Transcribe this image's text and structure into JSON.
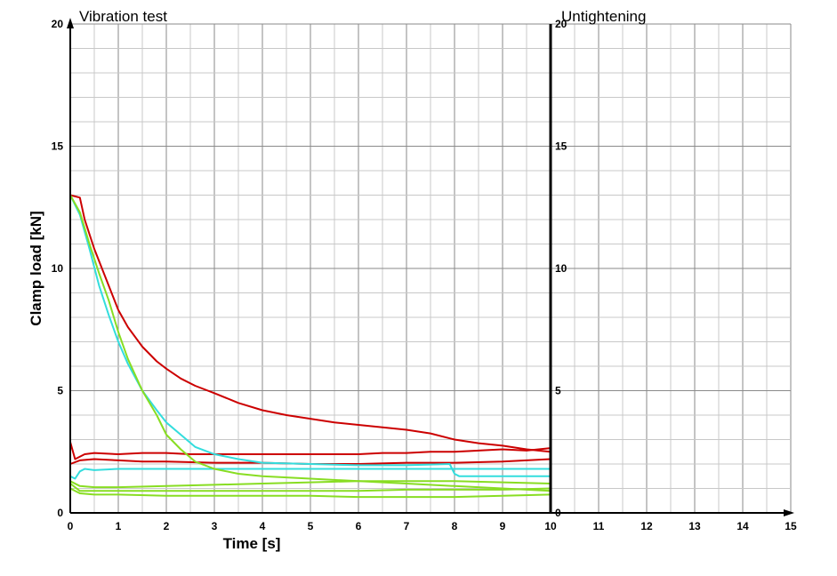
{
  "chart_data": {
    "type": "line",
    "panels": {
      "vibration": {
        "title": "Vibration test",
        "xlim": [
          0,
          10
        ]
      },
      "untightening": {
        "title": "Untightening",
        "xlim": [
          10,
          15
        ]
      }
    },
    "xlabel": "Time [s]",
    "ylabel": "Clamp load [kN]",
    "ylim": [
      0,
      20
    ],
    "x_ticks": [
      0,
      1,
      2,
      3,
      4,
      5,
      6,
      7,
      8,
      9,
      10,
      11,
      12,
      13,
      14,
      15
    ],
    "y_ticks": [
      0,
      5,
      10,
      15,
      20
    ],
    "grid": true,
    "colors": {
      "red": "#cc0000",
      "cyan": "#33dddd",
      "green": "#88dd22"
    },
    "series": [
      {
        "color": "red",
        "points": [
          [
            0,
            13
          ],
          [
            0.2,
            12.9
          ],
          [
            0.3,
            12
          ],
          [
            0.5,
            10.8
          ],
          [
            0.8,
            9.3
          ],
          [
            1,
            8.3
          ],
          [
            1.2,
            7.6
          ],
          [
            1.5,
            6.8
          ],
          [
            1.8,
            6.2
          ],
          [
            2,
            5.9
          ],
          [
            2.3,
            5.5
          ],
          [
            2.6,
            5.2
          ],
          [
            3,
            4.9
          ],
          [
            3.5,
            4.5
          ],
          [
            4,
            4.2
          ],
          [
            4.5,
            4.0
          ],
          [
            5,
            3.85
          ],
          [
            5.5,
            3.7
          ],
          [
            6,
            3.6
          ],
          [
            6.5,
            3.5
          ],
          [
            7,
            3.4
          ],
          [
            7.5,
            3.25
          ],
          [
            8,
            3.0
          ],
          [
            8.5,
            2.85
          ],
          [
            9,
            2.75
          ],
          [
            9.5,
            2.6
          ],
          [
            10,
            2.5
          ]
        ]
      },
      {
        "color": "red",
        "points": [
          [
            0,
            2.9
          ],
          [
            0.1,
            2.2
          ],
          [
            0.3,
            2.4
          ],
          [
            0.5,
            2.45
          ],
          [
            1,
            2.4
          ],
          [
            1.5,
            2.45
          ],
          [
            2,
            2.45
          ],
          [
            2.5,
            2.4
          ],
          [
            3,
            2.4
          ],
          [
            4,
            2.4
          ],
          [
            5,
            2.4
          ],
          [
            6,
            2.4
          ],
          [
            6.5,
            2.45
          ],
          [
            7,
            2.45
          ],
          [
            7.5,
            2.5
          ],
          [
            8,
            2.5
          ],
          [
            8.5,
            2.55
          ],
          [
            9,
            2.6
          ],
          [
            9.5,
            2.55
          ],
          [
            10,
            2.65
          ]
        ]
      },
      {
        "color": "red",
        "points": [
          [
            0,
            2.0
          ],
          [
            0.2,
            2.15
          ],
          [
            0.5,
            2.2
          ],
          [
            1,
            2.15
          ],
          [
            1.5,
            2.1
          ],
          [
            2,
            2.1
          ],
          [
            3,
            2.05
          ],
          [
            4,
            2.05
          ],
          [
            5,
            2.0
          ],
          [
            6,
            2.0
          ],
          [
            7,
            2.05
          ],
          [
            8,
            2.05
          ],
          [
            9,
            2.1
          ],
          [
            10,
            2.2
          ]
        ]
      },
      {
        "color": "cyan",
        "points": [
          [
            0,
            13
          ],
          [
            0.2,
            12.2
          ],
          [
            0.4,
            10.8
          ],
          [
            0.6,
            9.3
          ],
          [
            0.8,
            8.1
          ],
          [
            1,
            7.0
          ],
          [
            1.2,
            6.1
          ],
          [
            1.5,
            5.0
          ],
          [
            1.8,
            4.2
          ],
          [
            2,
            3.7
          ],
          [
            2.3,
            3.2
          ],
          [
            2.6,
            2.7
          ],
          [
            3,
            2.4
          ],
          [
            3.5,
            2.2
          ],
          [
            4,
            2.05
          ],
          [
            5,
            2.0
          ],
          [
            6,
            1.95
          ],
          [
            7,
            1.95
          ],
          [
            7.9,
            2.0
          ],
          [
            8,
            1.6
          ],
          [
            8.1,
            1.5
          ],
          [
            9,
            1.5
          ],
          [
            10,
            1.5
          ]
        ]
      },
      {
        "color": "cyan",
        "points": [
          [
            0,
            1.5
          ],
          [
            0.1,
            1.4
          ],
          [
            0.2,
            1.7
          ],
          [
            0.3,
            1.8
          ],
          [
            0.5,
            1.75
          ],
          [
            1,
            1.8
          ],
          [
            2,
            1.8
          ],
          [
            3,
            1.8
          ],
          [
            4,
            1.8
          ],
          [
            5,
            1.8
          ],
          [
            6,
            1.8
          ],
          [
            7,
            1.8
          ],
          [
            8,
            1.8
          ],
          [
            9,
            1.8
          ],
          [
            10,
            1.8
          ]
        ]
      },
      {
        "color": "green",
        "points": [
          [
            0,
            13
          ],
          [
            0.2,
            12.3
          ],
          [
            0.4,
            11.0
          ],
          [
            0.6,
            9.8
          ],
          [
            0.8,
            8.7
          ],
          [
            1,
            7.4
          ],
          [
            1.2,
            6.3
          ],
          [
            1.5,
            5.0
          ],
          [
            1.8,
            4.0
          ],
          [
            2,
            3.2
          ],
          [
            2.3,
            2.6
          ],
          [
            2.6,
            2.1
          ],
          [
            3,
            1.8
          ],
          [
            3.5,
            1.6
          ],
          [
            4,
            1.5
          ],
          [
            5,
            1.4
          ],
          [
            6,
            1.3
          ],
          [
            7,
            1.2
          ],
          [
            8,
            1.1
          ],
          [
            9,
            1.0
          ],
          [
            10,
            0.9
          ]
        ]
      },
      {
        "color": "green",
        "points": [
          [
            0,
            1.3
          ],
          [
            0.2,
            1.1
          ],
          [
            0.5,
            1.05
          ],
          [
            1,
            1.05
          ],
          [
            2,
            1.1
          ],
          [
            3,
            1.15
          ],
          [
            4,
            1.2
          ],
          [
            5,
            1.25
          ],
          [
            6,
            1.3
          ],
          [
            7,
            1.3
          ],
          [
            8,
            1.3
          ],
          [
            9,
            1.25
          ],
          [
            10,
            1.2
          ]
        ]
      },
      {
        "color": "green",
        "points": [
          [
            0,
            1.2
          ],
          [
            0.2,
            0.9
          ],
          [
            0.5,
            0.9
          ],
          [
            1,
            0.9
          ],
          [
            2,
            0.9
          ],
          [
            3,
            0.9
          ],
          [
            4,
            0.9
          ],
          [
            5,
            0.9
          ],
          [
            6,
            0.9
          ],
          [
            7,
            0.95
          ],
          [
            8,
            0.95
          ],
          [
            9,
            0.95
          ],
          [
            10,
            1.0
          ]
        ]
      },
      {
        "color": "green",
        "points": [
          [
            0,
            1.0
          ],
          [
            0.2,
            0.8
          ],
          [
            0.5,
            0.75
          ],
          [
            1,
            0.75
          ],
          [
            2,
            0.7
          ],
          [
            3,
            0.7
          ],
          [
            4,
            0.7
          ],
          [
            5,
            0.7
          ],
          [
            6,
            0.65
          ],
          [
            7,
            0.65
          ],
          [
            8,
            0.65
          ],
          [
            9,
            0.7
          ],
          [
            10,
            0.75
          ]
        ]
      }
    ]
  }
}
